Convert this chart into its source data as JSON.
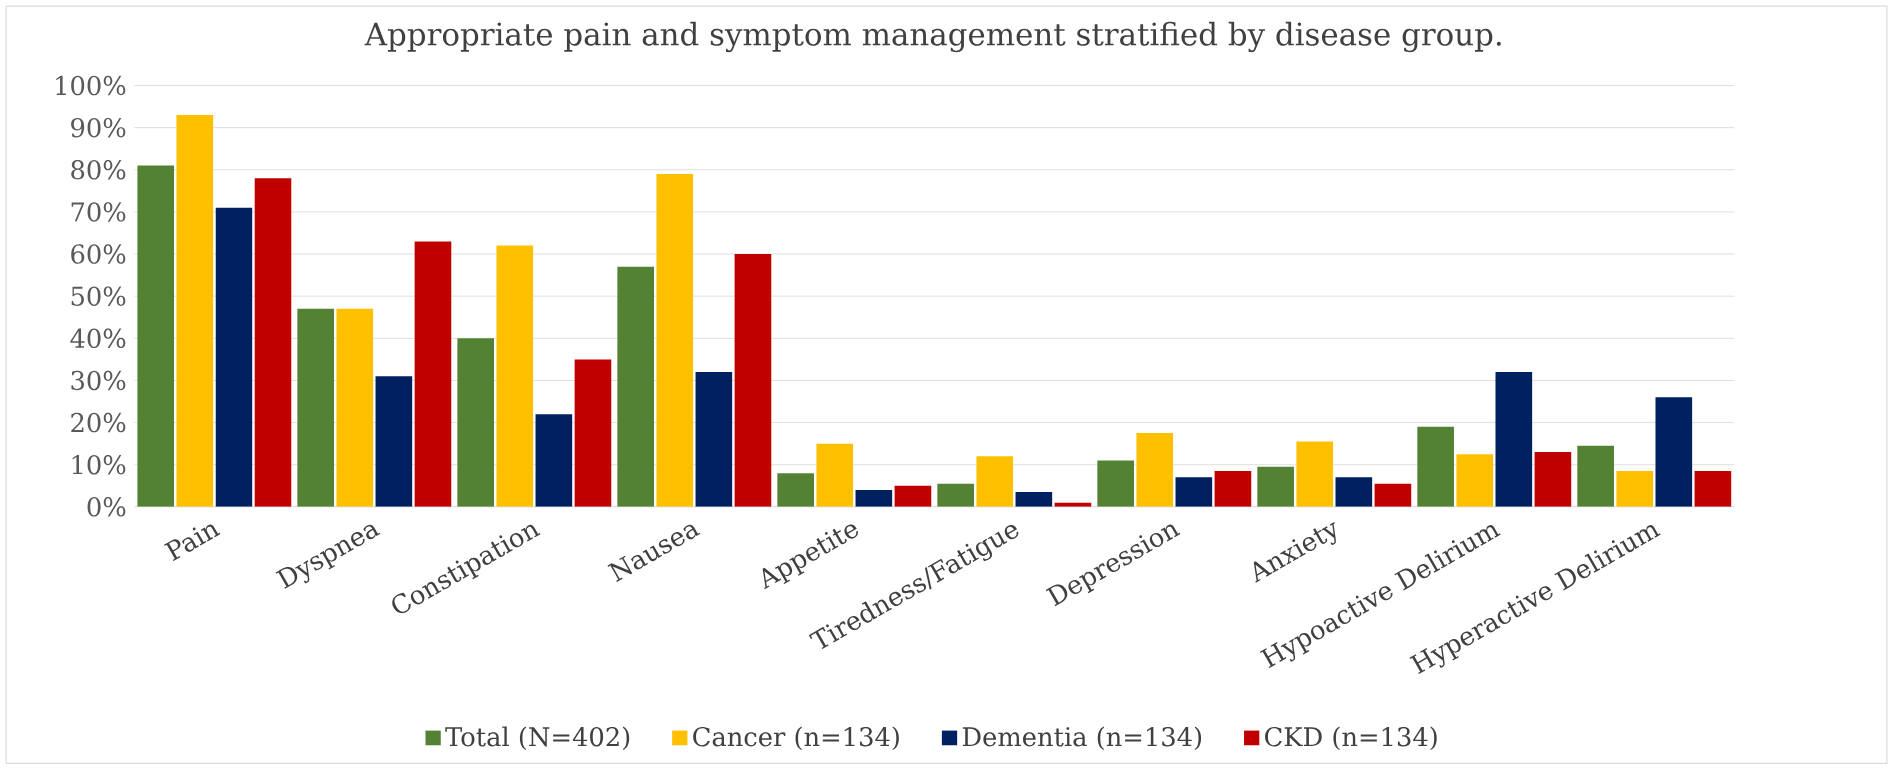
{
  "chart_data": {
    "type": "bar",
    "title": "Appropriate pain and symptom management stratified by disease group.",
    "categories": [
      "Pain",
      "Dyspnea",
      "Constipation",
      "Nausea",
      "Appetite",
      "Tiredness/Fatigue",
      "Depression",
      "Anxiety",
      "Hypoactive Delirium",
      "Hyperactive Delirium"
    ],
    "series": [
      {
        "name": "Total (N=402)",
        "color": "#548235",
        "values": [
          81,
          47,
          40,
          57,
          8,
          5.5,
          11,
          9.5,
          19,
          14.5
        ]
      },
      {
        "name": "Cancer (n=134)",
        "color": "#ffc000",
        "values": [
          93,
          47,
          62,
          79,
          15,
          12,
          17.5,
          15.5,
          12.5,
          8.5
        ]
      },
      {
        "name": "Dementia (n=134)",
        "color": "#002060",
        "values": [
          71,
          31,
          22,
          32,
          4,
          3.5,
          7,
          7,
          32,
          26
        ]
      },
      {
        "name": "CKD (n=134)",
        "color": "#c00000",
        "values": [
          78,
          63,
          35,
          60,
          5,
          1,
          8.5,
          5.5,
          13,
          8.5
        ]
      }
    ],
    "ylim": [
      0,
      100
    ],
    "yticks": [
      {
        "value": 0,
        "label": "0%"
      },
      {
        "value": 10,
        "label": "10%"
      },
      {
        "value": 20,
        "label": "20%"
      },
      {
        "value": 30,
        "label": "30%"
      },
      {
        "value": 40,
        "label": "40%"
      },
      {
        "value": 50,
        "label": "50%"
      },
      {
        "value": 60,
        "label": "60%"
      },
      {
        "value": 70,
        "label": "70%"
      },
      {
        "value": 80,
        "label": "80%"
      },
      {
        "value": 90,
        "label": "90%"
      },
      {
        "value": 100,
        "label": "100%"
      }
    ],
    "grid": "y",
    "legend": "bottom"
  }
}
